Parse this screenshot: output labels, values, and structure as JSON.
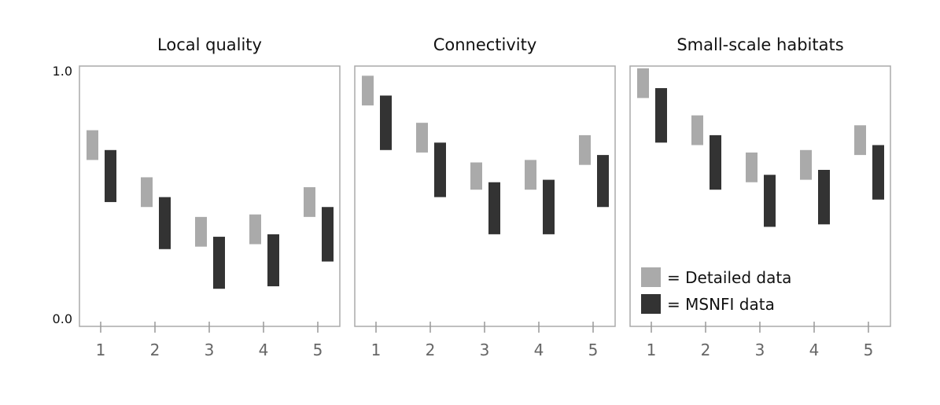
{
  "chart_data": [
    {
      "type": "bar",
      "title": "Local quality",
      "categories": [
        "1",
        "2",
        "3",
        "4",
        "5"
      ],
      "ylim": [
        0.0,
        1.0
      ],
      "yticks": [
        "0.0",
        "1.0"
      ],
      "series": [
        {
          "name": "Detailed data",
          "color": "#aaaaaa",
          "ranges": [
            [
              0.64,
              0.76
            ],
            [
              0.45,
              0.57
            ],
            [
              0.29,
              0.41
            ],
            [
              0.3,
              0.42
            ],
            [
              0.41,
              0.53
            ]
          ]
        },
        {
          "name": "MSNFI data",
          "color": "#333333",
          "ranges": [
            [
              0.47,
              0.68
            ],
            [
              0.28,
              0.49
            ],
            [
              0.12,
              0.33
            ],
            [
              0.13,
              0.34
            ],
            [
              0.23,
              0.45
            ]
          ]
        }
      ]
    },
    {
      "type": "bar",
      "title": "Connectivity",
      "categories": [
        "1",
        "2",
        "3",
        "4",
        "5"
      ],
      "ylim": [
        0.0,
        1.0
      ],
      "yticks": [],
      "series": [
        {
          "name": "Detailed data",
          "color": "#aaaaaa",
          "ranges": [
            [
              0.86,
              0.98
            ],
            [
              0.67,
              0.79
            ],
            [
              0.52,
              0.63
            ],
            [
              0.52,
              0.64
            ],
            [
              0.62,
              0.74
            ]
          ]
        },
        {
          "name": "MSNFI data",
          "color": "#333333",
          "ranges": [
            [
              0.68,
              0.9
            ],
            [
              0.49,
              0.71
            ],
            [
              0.34,
              0.55
            ],
            [
              0.34,
              0.56
            ],
            [
              0.45,
              0.66
            ]
          ]
        }
      ]
    },
    {
      "type": "bar",
      "title": "Small-scale habitats",
      "categories": [
        "1",
        "2",
        "3",
        "4",
        "5"
      ],
      "ylim": [
        0.0,
        1.0
      ],
      "yticks": [],
      "legend": {
        "position": "bottom-left",
        "entries": [
          "= Detailed data",
          "= MSNFI data"
        ]
      },
      "series": [
        {
          "name": "Detailed data",
          "color": "#aaaaaa",
          "ranges": [
            [
              0.89,
              1.01
            ],
            [
              0.7,
              0.82
            ],
            [
              0.55,
              0.67
            ],
            [
              0.56,
              0.68
            ],
            [
              0.66,
              0.78
            ]
          ]
        },
        {
          "name": "MSNFI data",
          "color": "#333333",
          "ranges": [
            [
              0.71,
              0.93
            ],
            [
              0.52,
              0.74
            ],
            [
              0.37,
              0.58
            ],
            [
              0.38,
              0.6
            ],
            [
              0.48,
              0.7
            ]
          ]
        }
      ]
    }
  ]
}
